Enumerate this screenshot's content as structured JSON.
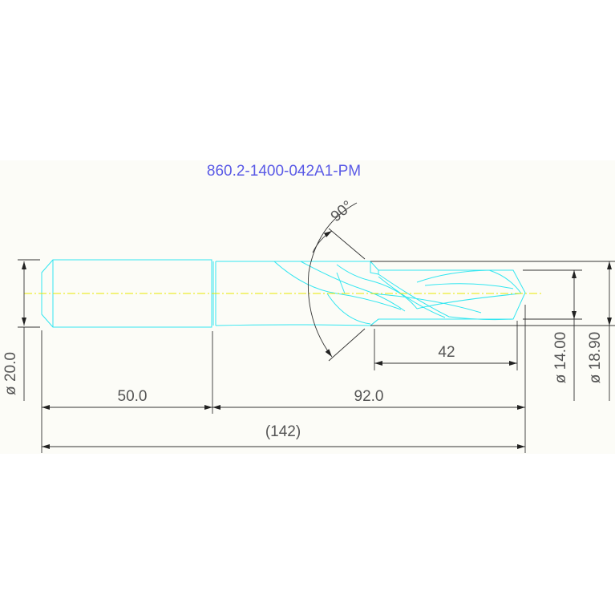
{
  "title": "860.2-1400-042A1-PM",
  "dimensions": {
    "shank_diameter": "ø 20.0",
    "shank_length": "50.0",
    "body_length": "92.0",
    "overall_length": "(142)",
    "flute_length": "42",
    "drill_diameter": "ø 14.00",
    "step_diameter": "ø 18.90",
    "point_angle": "90°"
  },
  "colors": {
    "part_outline": "#33e6f0",
    "centerline": "#e8e800",
    "dimension": "#333333",
    "title": "#5a5ae6",
    "background_band": "#fcfcf7"
  }
}
